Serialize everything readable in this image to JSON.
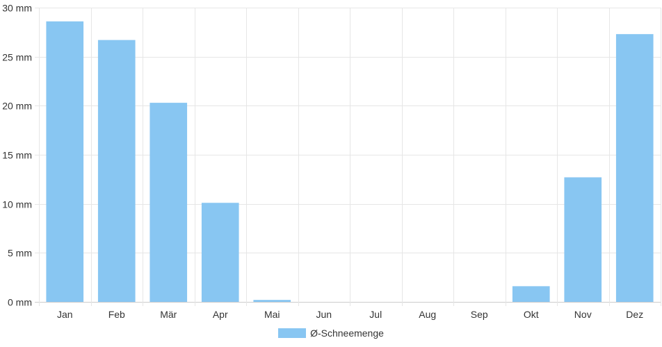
{
  "chart_data": {
    "type": "bar",
    "categories": [
      "Jan",
      "Feb",
      "Mär",
      "Apr",
      "Mai",
      "Jun",
      "Jul",
      "Aug",
      "Sep",
      "Okt",
      "Nov",
      "Dez"
    ],
    "series": [
      {
        "name": "Ø-Schneemenge",
        "values": [
          28.6,
          26.7,
          20.3,
          10.1,
          0.2,
          0,
          0,
          0,
          0,
          1.6,
          12.7,
          27.3
        ],
        "color": "#88c6f2"
      }
    ],
    "ylim": [
      0,
      30
    ],
    "yticks": [
      0,
      5,
      10,
      15,
      20,
      25,
      30
    ],
    "ytick_labels": [
      "0 mm",
      "5 mm",
      "10 mm",
      "15 mm",
      "20 mm",
      "25 mm",
      "30 mm"
    ],
    "grid": true,
    "legend_position": "bottom-center"
  }
}
